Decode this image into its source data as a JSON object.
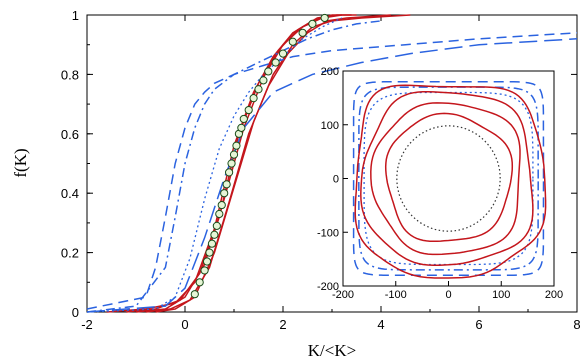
{
  "colors": {
    "red": "#c4161c",
    "blue": "#2b63e0",
    "marker_fill": "#e6f5d6",
    "marker_stroke": "#1a4d1a",
    "dotted": "#333333"
  },
  "chart_data": [
    {
      "type": "line",
      "xlabel": "K/<K>",
      "ylabel": "f(K)",
      "xlim": [
        -2,
        8
      ],
      "ylim": [
        0,
        1
      ],
      "xticks": [
        -2,
        0,
        2,
        4,
        6,
        8
      ],
      "yticks": [
        0,
        0.2,
        0.4,
        0.6,
        0.8,
        1
      ],
      "xtick_labels": [
        "-2",
        "0",
        "2",
        "4",
        "6",
        "8"
      ],
      "ytick_labels": [
        "0",
        "0.2",
        "0.4",
        "0.6",
        "0.8",
        "1"
      ],
      "grid": false,
      "series": [
        {
          "style": "red-solid",
          "x": [
            -1.6,
            -0.8,
            -0.2,
            0.2,
            0.6,
            1.0,
            1.4,
            1.8,
            2.2,
            2.6,
            3.0,
            3.4
          ],
          "y": [
            0,
            0.01,
            0.03,
            0.1,
            0.28,
            0.56,
            0.74,
            0.86,
            0.94,
            0.98,
            1.0,
            1.0
          ]
        },
        {
          "style": "red-solid",
          "x": [
            -1.2,
            -0.6,
            -0.1,
            0.3,
            0.7,
            1.1,
            1.5,
            1.9,
            2.3,
            2.7,
            3.1,
            3.5
          ],
          "y": [
            0,
            0.01,
            0.04,
            0.13,
            0.32,
            0.6,
            0.77,
            0.88,
            0.95,
            0.99,
            1.0,
            1.0
          ]
        },
        {
          "style": "red-solid",
          "x": [
            -1.0,
            -0.4,
            0.0,
            0.4,
            0.8,
            1.2,
            1.6,
            2.0,
            2.4,
            2.8,
            3.2
          ],
          "y": [
            0,
            0.01,
            0.05,
            0.16,
            0.38,
            0.62,
            0.79,
            0.9,
            0.96,
            0.99,
            1.0
          ]
        },
        {
          "style": "red-solid",
          "x": [
            -0.8,
            -0.3,
            0.1,
            0.5,
            0.9,
            1.3,
            1.7,
            2.1,
            2.5,
            2.9,
            3.3,
            4.2
          ],
          "y": [
            0,
            0.01,
            0.04,
            0.15,
            0.37,
            0.6,
            0.76,
            0.87,
            0.94,
            0.98,
            0.99,
            1.0
          ]
        },
        {
          "style": "red-solid",
          "x": [
            -0.6,
            -0.2,
            0.2,
            0.6,
            1.0,
            1.4,
            1.8,
            2.2,
            2.6,
            3.0,
            3.6,
            4.6
          ],
          "y": [
            0,
            0.01,
            0.05,
            0.2,
            0.42,
            0.64,
            0.8,
            0.9,
            0.96,
            0.98,
            0.99,
            1.0
          ]
        },
        {
          "style": "blue-dash",
          "x": [
            -2,
            -0.8,
            -0.6,
            -0.4,
            -0.2,
            0.0,
            0.2,
            0.4,
            0.6,
            1.0,
            1.6,
            2.2,
            3.0,
            4.5,
            6.0,
            8.0
          ],
          "y": [
            0.01,
            0.05,
            0.15,
            0.32,
            0.5,
            0.62,
            0.7,
            0.74,
            0.77,
            0.8,
            0.83,
            0.86,
            0.88,
            0.9,
            0.92,
            0.94
          ]
        },
        {
          "style": "blue-dashdot",
          "x": [
            -2,
            -1.0,
            -0.4,
            -0.2,
            0.0,
            0.2,
            0.4,
            0.6,
            1.0,
            1.5,
            2.0,
            2.5,
            3.0,
            3.5,
            4.0
          ],
          "y": [
            0,
            0.02,
            0.15,
            0.32,
            0.5,
            0.62,
            0.7,
            0.75,
            0.8,
            0.84,
            0.88,
            0.92,
            0.95,
            0.97,
            0.98
          ]
        },
        {
          "style": "blue-dot",
          "x": [
            -2,
            -0.6,
            -0.2,
            0.1,
            0.4,
            0.7,
            1.0,
            1.3,
            1.6,
            2.0,
            2.4,
            2.8,
            3.2
          ],
          "y": [
            0,
            0.01,
            0.05,
            0.18,
            0.38,
            0.55,
            0.66,
            0.74,
            0.8,
            0.86,
            0.92,
            0.96,
            0.99
          ]
        },
        {
          "style": "blue-longdash",
          "x": [
            -2,
            -0.4,
            0.0,
            0.4,
            0.8,
            1.2,
            1.8,
            2.6,
            3.6,
            4.6,
            6.0,
            8.0
          ],
          "y": [
            0,
            0.02,
            0.08,
            0.25,
            0.45,
            0.62,
            0.74,
            0.8,
            0.84,
            0.87,
            0.9,
            0.92
          ]
        }
      ],
      "markers": {
        "x": [
          0.2,
          0.3,
          0.4,
          0.45,
          0.5,
          0.55,
          0.6,
          0.65,
          0.7,
          0.75,
          0.8,
          0.85,
          0.9,
          0.95,
          1.0,
          1.05,
          1.1,
          1.15,
          1.2,
          1.3,
          1.4,
          1.5,
          1.6,
          1.7,
          1.85,
          2.0,
          2.2,
          2.4,
          2.6,
          2.85
        ],
        "y": [
          0.06,
          0.1,
          0.14,
          0.17,
          0.2,
          0.23,
          0.26,
          0.29,
          0.33,
          0.36,
          0.4,
          0.43,
          0.47,
          0.5,
          0.53,
          0.56,
          0.6,
          0.62,
          0.65,
          0.68,
          0.72,
          0.75,
          0.78,
          0.81,
          0.84,
          0.87,
          0.91,
          0.94,
          0.97,
          0.99
        ]
      }
    },
    {
      "type": "line",
      "xlim": [
        -200,
        200
      ],
      "ylim": [
        -200,
        200
      ],
      "xticks": [
        -200,
        -100,
        0,
        100,
        200
      ],
      "yticks": [
        -200,
        -100,
        0,
        100,
        200
      ],
      "xtick_labels": [
        "-200",
        "-100",
        "0",
        "100",
        "200"
      ],
      "ytick_labels": [
        "-200",
        "-100",
        "0",
        "100",
        "200"
      ],
      "grid": false,
      "contours": [
        {
          "style": "blue-dash",
          "radius": 180,
          "squareness": 12
        },
        {
          "style": "blue-dashdot",
          "radius": 170,
          "squareness": 8
        },
        {
          "style": "blue-dot",
          "radius": 160,
          "squareness": 5
        },
        {
          "style": "red-solid",
          "radius": 178,
          "squareness": 3
        },
        {
          "style": "red-solid",
          "radius": 160,
          "squareness": 2.6
        },
        {
          "style": "red-solid",
          "radius": 140,
          "squareness": 2.4
        },
        {
          "style": "red-solid",
          "radius": 118,
          "squareness": 2.2
        },
        {
          "style": "black-dot",
          "radius": 98,
          "squareness": 2
        }
      ]
    }
  ]
}
